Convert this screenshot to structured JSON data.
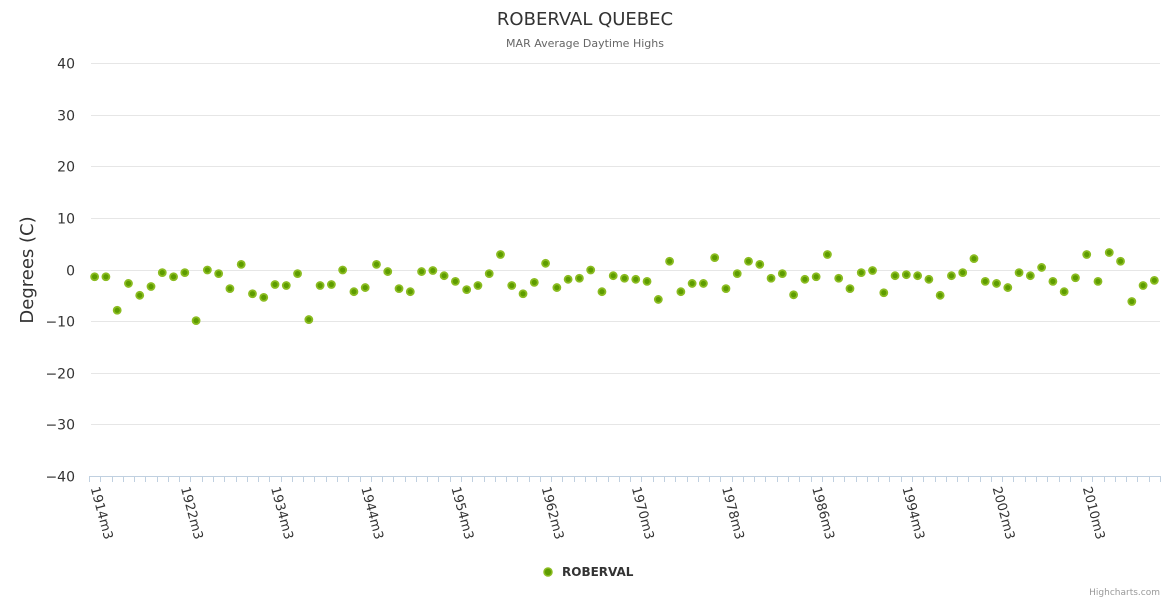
{
  "chart_data": {
    "type": "scatter",
    "title": "ROBERVAL QUEBEC",
    "subtitle": "MAR Average Daytime Highs",
    "ylabel": "Degrees (C)",
    "xlabel": "",
    "ylim": [
      -40,
      40
    ],
    "yticks": [
      40,
      30,
      20,
      10,
      0,
      -10,
      -20,
      -30,
      -40
    ],
    "ytick_labels": [
      "40",
      "30",
      "20",
      "10",
      "0",
      "−10",
      "−20",
      "−30",
      "−40"
    ],
    "grid": true,
    "x_label_every": 8,
    "x_tick_labels": [
      "1914m3",
      "1922m3",
      "1934m3",
      "1944m3",
      "1954m3",
      "1962m3",
      "1970m3",
      "1978m3",
      "1986m3",
      "1994m3",
      "2002m3",
      "2010m3"
    ],
    "series": [
      {
        "name": "ROBERVAL",
        "color": "#8bbc21",
        "values": [
          -1.4,
          -1.4,
          -7.9,
          -2.7,
          -5.0,
          -3.3,
          -0.6,
          -1.4,
          -0.6,
          -9.9,
          -0.1,
          -0.8,
          -3.7,
          1.0,
          -4.7,
          -5.4,
          -2.9,
          -3.1,
          -0.8,
          -9.7,
          -3.1,
          -2.9,
          -0.1,
          -4.3,
          -3.5,
          1.0,
          -0.4,
          -3.7,
          -4.3,
          -0.4,
          -0.2,
          -1.2,
          -2.3,
          -3.9,
          -3.1,
          -0.8,
          2.9,
          -3.1,
          -4.7,
          -2.5,
          1.2,
          -3.5,
          -1.9,
          -1.7,
          -0.1,
          -4.3,
          -1.2,
          -1.7,
          -1.9,
          -2.3,
          -5.8,
          1.6,
          -4.3,
          -2.7,
          -2.7,
          2.3,
          -3.7,
          -0.8,
          1.6,
          1.0,
          -1.7,
          -0.8,
          -4.9,
          -1.9,
          -1.4,
          2.9,
          -1.7,
          -3.7,
          -0.6,
          -0.2,
          -4.5,
          -1.2,
          -1.0,
          -1.2,
          -1.9,
          -5.0,
          -1.2,
          -0.6,
          2.1,
          -2.3,
          -2.7,
          -3.5,
          -0.6,
          -1.2,
          0.4,
          -2.3,
          -4.3,
          -1.6,
          2.9,
          -2.3,
          3.3,
          1.6,
          -6.2,
          -3.1,
          -2.1
        ]
      }
    ],
    "legend": "bottom-center",
    "credits": "Highcharts.com"
  }
}
